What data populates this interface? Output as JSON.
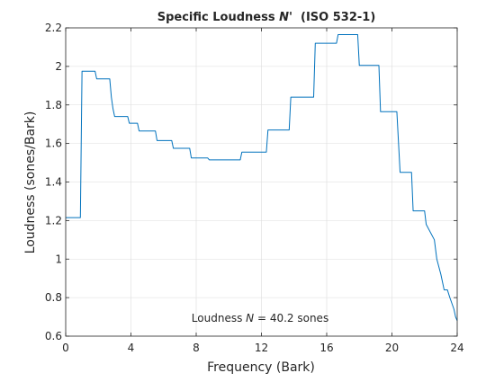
{
  "chart_data": {
    "type": "line",
    "title": {
      "prefix": "Specific Loudness ",
      "symbol": "N'",
      "suffix": "  (ISO 532-1)"
    },
    "xlabel": "Frequency (Bark)",
    "ylabel": "Loudness (sones/Bark)",
    "xlim": [
      0,
      24
    ],
    "ylim": [
      0.6,
      2.2
    ],
    "xticks": [
      0,
      4,
      8,
      12,
      16,
      20,
      24
    ],
    "xtick_labels": [
      "0",
      "4",
      "8",
      "12",
      "16",
      "20",
      "24"
    ],
    "yticks": [
      0.6,
      0.8,
      1.0,
      1.2,
      1.4,
      1.6,
      1.8,
      2.0,
      2.2
    ],
    "ytick_labels": [
      "0.6",
      "0.8",
      "1",
      "1.2",
      "1.4",
      "1.6",
      "1.8",
      "2",
      "2.2"
    ],
    "grid": true,
    "annotation": {
      "prefix": "Loudness ",
      "symbol": "N",
      "suffix": " = 40.2 sones"
    },
    "series": [
      {
        "color": "#0072BD",
        "x": [
          0,
          0.9,
          1.0,
          1.8,
          1.9,
          2.7,
          2.8,
          2.9,
          3.0,
          3.8,
          3.9,
          4.4,
          4.5,
          5.5,
          5.6,
          6.5,
          6.6,
          7.6,
          7.7,
          8.7,
          8.8,
          10.7,
          10.8,
          12.3,
          12.4,
          13.7,
          13.8,
          15.2,
          15.3,
          16.6,
          16.7,
          17.9,
          18.0,
          19.2,
          19.3,
          20.3,
          20.5,
          21.2,
          21.3,
          22.0,
          22.1,
          22.6,
          22.75,
          23.0,
          23.2,
          23.4,
          23.55,
          23.8,
          23.9,
          24.0
        ],
        "y": [
          1.215,
          1.215,
          1.975,
          1.975,
          1.935,
          1.935,
          1.84,
          1.78,
          1.74,
          1.74,
          1.705,
          1.705,
          1.665,
          1.665,
          1.615,
          1.615,
          1.575,
          1.575,
          1.525,
          1.525,
          1.515,
          1.515,
          1.555,
          1.555,
          1.67,
          1.67,
          1.84,
          1.84,
          2.12,
          2.12,
          2.165,
          2.165,
          2.005,
          2.005,
          1.765,
          1.765,
          1.45,
          1.45,
          1.25,
          1.25,
          1.18,
          1.1,
          1.0,
          0.92,
          0.84,
          0.84,
          0.8,
          0.74,
          0.7,
          0.68
        ]
      }
    ]
  }
}
